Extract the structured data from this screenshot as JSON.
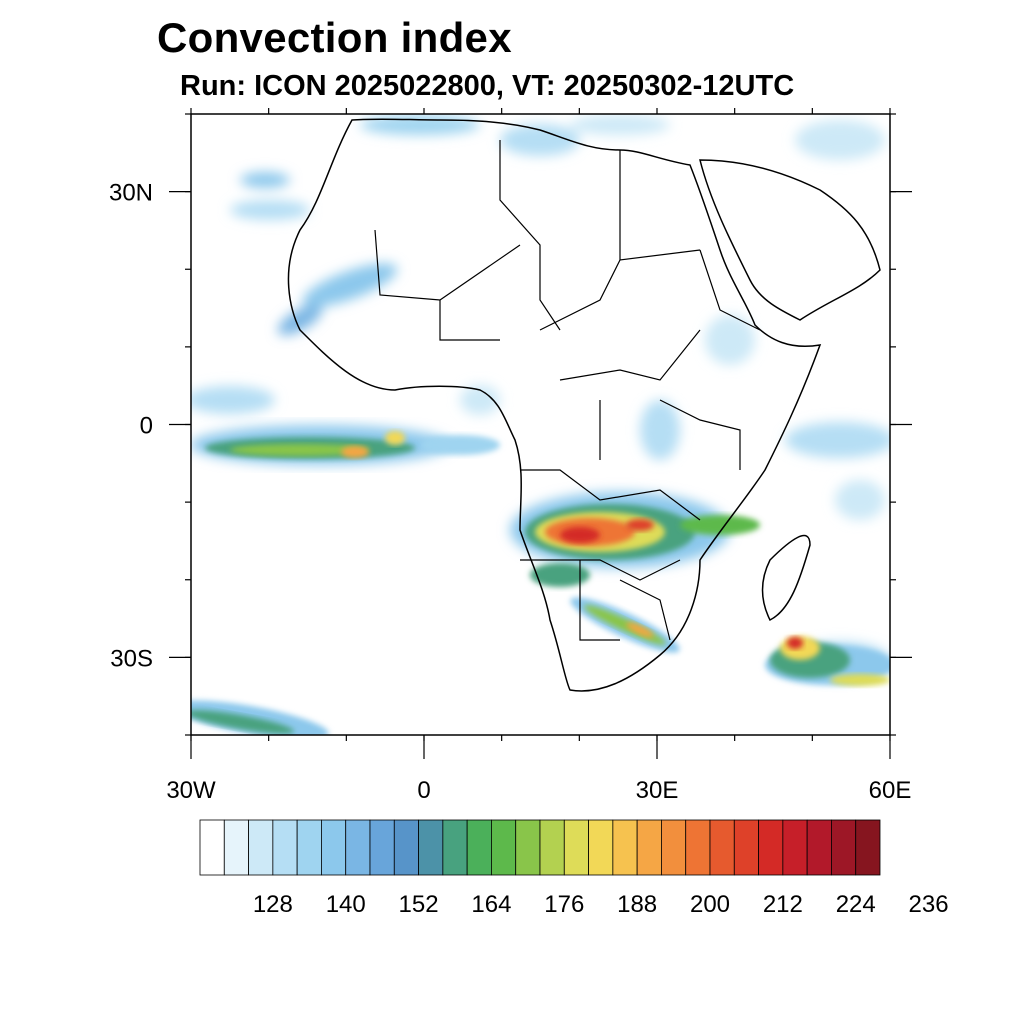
{
  "title": "Convection index",
  "subtitle": "Run: ICON 2025022800,  VT: 20250302-12UTC",
  "map": {
    "lon_range": [
      -30,
      60
    ],
    "lat_range": [
      -40,
      40
    ],
    "lon_ticks": [
      {
        "value": -30,
        "label": "30W"
      },
      {
        "value": 0,
        "label": "0"
      },
      {
        "value": 30,
        "label": "30E"
      },
      {
        "value": 60,
        "label": "60E"
      }
    ],
    "lat_ticks": [
      {
        "value": 30,
        "label": "30N"
      },
      {
        "value": 0,
        "label": "0"
      },
      {
        "value": -30,
        "label": "30S"
      }
    ],
    "region": "Africa",
    "features": [
      {
        "name": "ITCZ band west of Africa",
        "lon": -18,
        "lat": -3,
        "max_value": 210
      },
      {
        "name": "Southern Africa convection (Angola/Zambia)",
        "lon": 22,
        "lat": -15,
        "max_value": 236
      },
      {
        "name": "Convection over South Africa",
        "lon": 22,
        "lat": -27,
        "max_value": 200
      },
      {
        "name": "Cyclone southeast of Madagascar",
        "lon": 52,
        "lat": -29,
        "max_value": 224
      },
      {
        "name": "Southwestern Atlantic band",
        "lon": -25,
        "lat": -39,
        "max_value": 170
      }
    ]
  },
  "colorbar": {
    "labels": [
      "128",
      "140",
      "152",
      "164",
      "176",
      "188",
      "200",
      "212",
      "224",
      "236"
    ],
    "colors": [
      "#ffffff",
      "#e6f4fb",
      "#cde9f7",
      "#b5def4",
      "#9fd4f0",
      "#8cc8ec",
      "#7ab6e4",
      "#68a5da",
      "#5794c9",
      "#4c92a8",
      "#48a27f",
      "#4bb05a",
      "#5db94b",
      "#89c54a",
      "#b3d150",
      "#dedc58",
      "#f2d857",
      "#f6c24f",
      "#f5a645",
      "#f28f3d",
      "#ee7434",
      "#e65a2e",
      "#de4129",
      "#d42a26",
      "#c61f29",
      "#b2192a",
      "#9d1726",
      "#86151f"
    ]
  }
}
